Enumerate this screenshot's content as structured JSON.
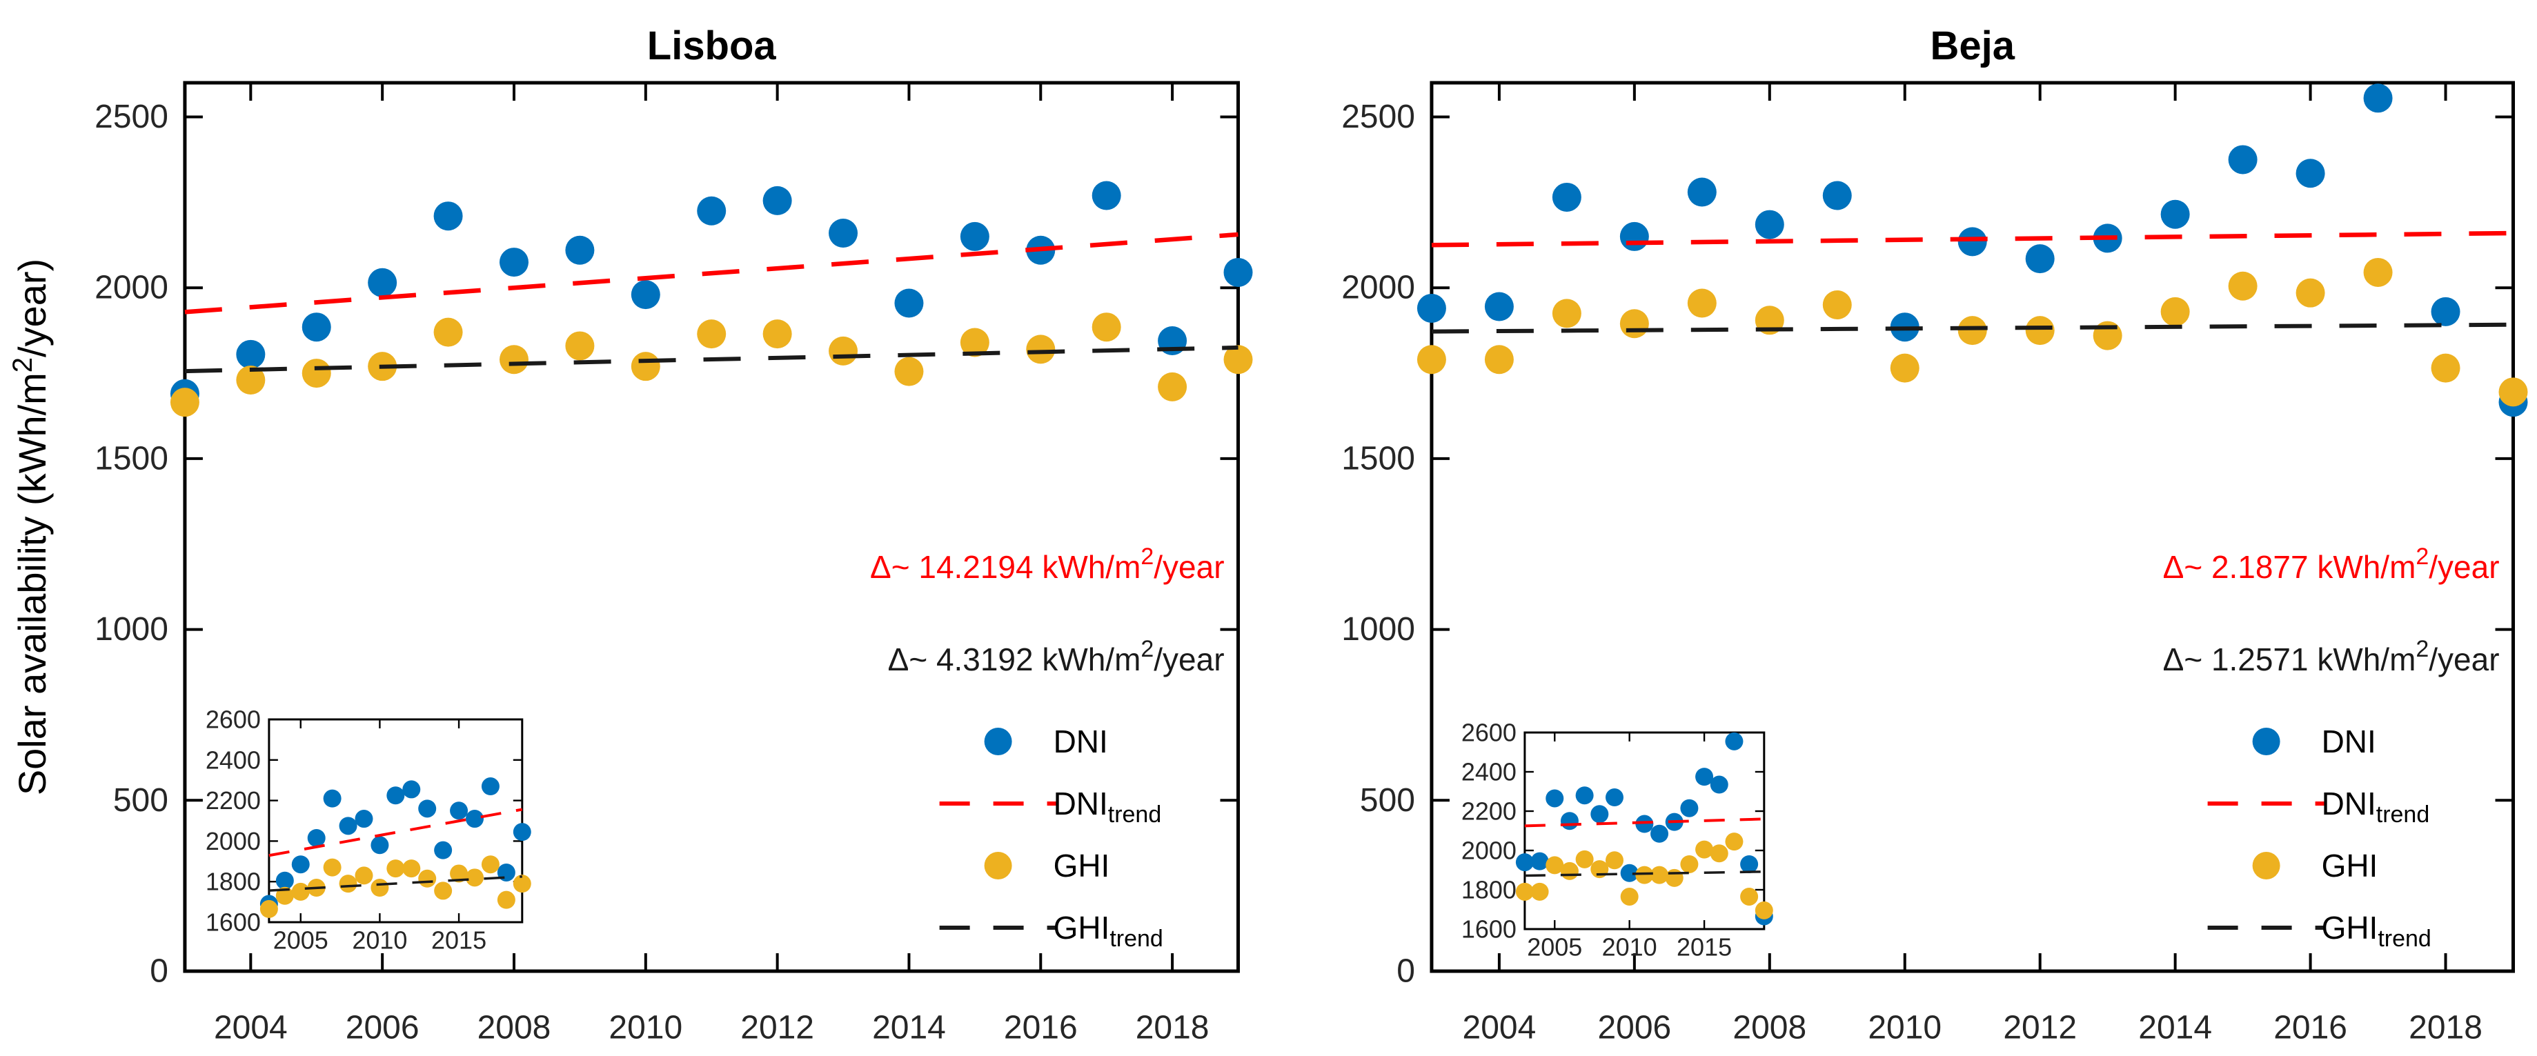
{
  "page": {
    "background": "#ffffff"
  },
  "colors": {
    "dni": "#0072BD",
    "ghi": "#EDB120",
    "dni_trend": "#FF0000",
    "ghi_trend": "#1A1A1A",
    "axis": "#000000",
    "tick_label": "#262626",
    "title": "#000000"
  },
  "y_axis_label": {
    "pre": "Solar availability (kWh/m",
    "sup": "2",
    "post": "/year)"
  },
  "legend": {
    "items": [
      {
        "marker": "dot",
        "color_key": "dni",
        "label": "DNI",
        "sub": ""
      },
      {
        "marker": "dash",
        "color_key": "dni_trend",
        "label": "DNI",
        "sub": "trend"
      },
      {
        "marker": "dot",
        "color_key": "ghi",
        "label": "GHI",
        "sub": ""
      },
      {
        "marker": "dash",
        "color_key": "ghi_trend",
        "label": "GHI",
        "sub": "trend"
      }
    ]
  },
  "chart_data": [
    {
      "type": "scatter",
      "title": "Lisboa",
      "xlabel": "",
      "ylabel": "Solar availability (kWh/m^2/year)",
      "xlim": [
        2003,
        2019
      ],
      "ylim": [
        0,
        2600
      ],
      "xticks": [
        2004,
        2006,
        2008,
        2010,
        2012,
        2014,
        2016,
        2018
      ],
      "yticks": [
        0,
        500,
        1000,
        1500,
        2000,
        2500
      ],
      "grid": false,
      "legend_position": "bottom-right-inside",
      "x": [
        2003,
        2004,
        2005,
        2006,
        2007,
        2008,
        2009,
        2010,
        2011,
        2012,
        2013,
        2014,
        2015,
        2016,
        2017,
        2018,
        2019
      ],
      "series": [
        {
          "name": "DNI",
          "color_key": "dni",
          "values": [
            1690,
            1805,
            1885,
            2015,
            2210,
            2075,
            2110,
            1980,
            2225,
            2255,
            2160,
            1955,
            2150,
            2110,
            2270,
            1845,
            2045
          ]
        },
        {
          "name": "GHI",
          "color_key": "ghi",
          "values": [
            1665,
            1730,
            1750,
            1770,
            1870,
            1790,
            1830,
            1770,
            1865,
            1865,
            1815,
            1755,
            1840,
            1820,
            1885,
            1710,
            1790
          ]
        }
      ],
      "trend_lines": [
        {
          "name": "DNI_trend",
          "color_key": "dni_trend",
          "slope_kwh_per_year": 14.2194,
          "y_start": 1929,
          "y_end": 2156
        },
        {
          "name": "GHI_trend",
          "color_key": "ghi_trend",
          "slope_kwh_per_year": 4.3192,
          "y_start": 1756,
          "y_end": 1825
        }
      ],
      "annotations": [
        {
          "color_key": "dni_trend",
          "delta": "Δ~ 14.2194",
          "unit_pre": " kWh/m",
          "unit_sup": "2",
          "unit_post": "/year"
        },
        {
          "color_key": "ghi_trend",
          "delta": "Δ~ 4.3192",
          "unit_pre": " kWh/m",
          "unit_sup": "2",
          "unit_post": "/year"
        }
      ],
      "inset": {
        "xlim": [
          2003,
          2019
        ],
        "ylim": [
          1600,
          2600
        ],
        "xticks": [
          2005,
          2010,
          2015
        ],
        "yticks": [
          1600,
          1800,
          2000,
          2200,
          2400,
          2600
        ]
      }
    },
    {
      "type": "scatter",
      "title": "Beja",
      "xlabel": "",
      "ylabel": "Solar availability (kWh/m^2/year)",
      "xlim": [
        2003,
        2019
      ],
      "ylim": [
        0,
        2600
      ],
      "xticks": [
        2004,
        2006,
        2008,
        2010,
        2012,
        2014,
        2016,
        2018
      ],
      "yticks": [
        0,
        500,
        1000,
        1500,
        2000,
        2500
      ],
      "grid": false,
      "legend_position": "bottom-right-inside",
      "x": [
        2003,
        2004,
        2005,
        2006,
        2007,
        2008,
        2009,
        2010,
        2011,
        2012,
        2013,
        2014,
        2015,
        2016,
        2017,
        2018,
        2019
      ],
      "series": [
        {
          "name": "DNI",
          "color_key": "dni",
          "values": [
            1940,
            1945,
            2265,
            2150,
            2280,
            2185,
            2270,
            1885,
            2135,
            2085,
            2145,
            2215,
            2375,
            2335,
            2555,
            1930,
            1665
          ]
        },
        {
          "name": "GHI",
          "color_key": "ghi",
          "values": [
            1790,
            1790,
            1925,
            1895,
            1955,
            1905,
            1950,
            1765,
            1875,
            1875,
            1860,
            1930,
            2005,
            1985,
            2045,
            1765,
            1695
          ]
        }
      ],
      "trend_lines": [
        {
          "name": "DNI_trend",
          "color_key": "dni_trend",
          "slope_kwh_per_year": 2.1877,
          "y_start": 2125,
          "y_end": 2160
        },
        {
          "name": "GHI_trend",
          "color_key": "ghi_trend",
          "slope_kwh_per_year": 1.2571,
          "y_start": 1872,
          "y_end": 1892
        }
      ],
      "annotations": [
        {
          "color_key": "dni_trend",
          "delta": "Δ~ 2.1877",
          "unit_pre": " kWh/m",
          "unit_sup": "2",
          "unit_post": "/year"
        },
        {
          "color_key": "ghi_trend",
          "delta": "Δ~ 1.2571",
          "unit_pre": " kWh/m",
          "unit_sup": "2",
          "unit_post": "/year"
        }
      ],
      "inset": {
        "xlim": [
          2003,
          2019
        ],
        "ylim": [
          1600,
          2600
        ],
        "xticks": [
          2005,
          2010,
          2015
        ],
        "yticks": [
          1600,
          1800,
          2000,
          2200,
          2400,
          2600
        ]
      }
    }
  ]
}
